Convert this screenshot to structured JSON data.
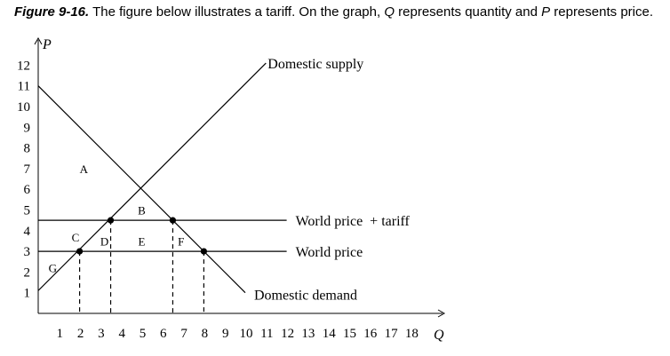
{
  "caption": {
    "figure": "Figure 9-16.",
    "text_1": " The figure below illustrates a tariff. On the graph, ",
    "q": "Q",
    "text_2": " represents quantity and ",
    "p": "P",
    "text_3": " represents price."
  },
  "chart_data": {
    "type": "line",
    "xlabel": "Q",
    "ylabel": "P",
    "xlim": [
      0,
      19
    ],
    "ylim": [
      0,
      12.7
    ],
    "x_ticks": [
      1,
      2,
      3,
      4,
      5,
      6,
      7,
      8,
      9,
      10,
      11,
      12,
      13,
      14,
      15,
      16,
      17,
      18
    ],
    "y_ticks": [
      1,
      2,
      3,
      4,
      5,
      6,
      7,
      8,
      9,
      10,
      11,
      12
    ],
    "grid": false,
    "series": [
      {
        "name": "Domestic supply",
        "points": [
          [
            0,
            1.1
          ],
          [
            11,
            12.1
          ]
        ],
        "color": "#000000"
      },
      {
        "name": "Domestic demand",
        "points": [
          [
            0,
            11
          ],
          [
            10,
            1
          ]
        ],
        "color": "#000000"
      }
    ],
    "horizontal_lines": [
      {
        "name": "World price + tariff",
        "y": 4.5,
        "x_range": [
          0,
          12
        ]
      },
      {
        "name": "World price",
        "y": 3,
        "x_range": [
          0,
          12
        ]
      }
    ],
    "points": [
      {
        "x": 2,
        "y": 3
      },
      {
        "x": 3.5,
        "y": 4.5
      },
      {
        "x": 6.5,
        "y": 4.5
      },
      {
        "x": 8,
        "y": 3
      }
    ],
    "dashed_drops": [
      {
        "x": 2,
        "from_y": 3
      },
      {
        "x": 3.5,
        "from_y": 4.5
      },
      {
        "x": 6.5,
        "from_y": 4.5
      },
      {
        "x": 8,
        "from_y": 3
      }
    ],
    "area_labels": [
      {
        "text": "A",
        "x": 2.2,
        "y": 7
      },
      {
        "text": "B",
        "x": 5,
        "y": 5
      },
      {
        "text": "C",
        "x": 1.8,
        "y": 3.7
      },
      {
        "text": "D",
        "x": 3.2,
        "y": 3.5
      },
      {
        "text": "E",
        "x": 5,
        "y": 3.5
      },
      {
        "text": "F",
        "x": 6.9,
        "y": 3.5
      },
      {
        "text": "G",
        "x": 0.7,
        "y": 2.2
      }
    ],
    "curve_labels": [
      {
        "text": "Domestic supply",
        "anchor": "end of supply"
      },
      {
        "text": "World price  + tariff",
        "anchor": "end of tariff line"
      },
      {
        "text": "World price",
        "anchor": "end of world price line"
      },
      {
        "text": "Domestic demand",
        "anchor": "end of demand"
      }
    ]
  }
}
